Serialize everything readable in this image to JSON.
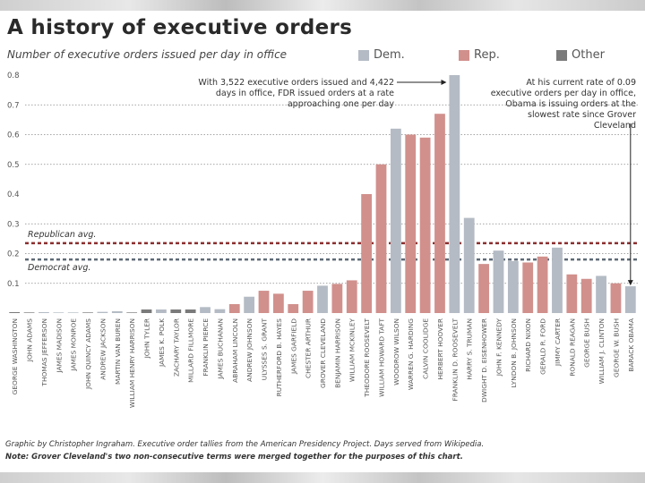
{
  "header": {
    "title": "A history of executive orders",
    "subtitle": "Number of executive orders issued per day in office"
  },
  "legend": [
    {
      "label": "Dem.",
      "color": "#b4bbc4"
    },
    {
      "label": "Rep.",
      "color": "#d1908c"
    },
    {
      "label": "Other",
      "color": "#7a7a7a"
    }
  ],
  "annotations": {
    "fdr": "With 3,522 executive orders issued and 4,422 days in office, FDR issued orders at a rate approaching one per day",
    "obama": "At his current rate of 0.09 executive orders per day in office, Obama is issuing orders at the slowest rate since Grover Cleveland"
  },
  "footer": {
    "credit": "Graphic by Christopher Ingraham. Executive order tallies from the American Presidency Project. Days served from Wikipedia.",
    "note": "Note: Grover Cleveland's two non-consecutive terms were merged together for the purposes of this chart."
  },
  "chart_data": {
    "type": "bar",
    "title": "A history of executive orders",
    "ylabel": "Number of executive orders issued per day in office",
    "xlabel": "",
    "ylim": [
      0,
      0.8
    ],
    "yticks": [
      "0.1",
      "0.2",
      "0.3",
      "0.4",
      "0.5",
      "0.6",
      "0.7",
      "0.8"
    ],
    "grid": true,
    "legend_position": "top-right",
    "party_colors": {
      "Dem": "#b4bbc4",
      "Rep": "#d1908c",
      "Other": "#7a7a7a"
    },
    "reference_lines": [
      {
        "label": "Republican avg.",
        "value": 0.235,
        "color": "#8b2e2e"
      },
      {
        "label": "Democrat avg.",
        "value": 0.18,
        "color": "#5f6a76"
      }
    ],
    "categories": [
      "GEORGE WASHINGTON",
      "JOHN ADAMS",
      "THOMAS JEFFERSON",
      "JAMES MADISON",
      "JAMES MONROE",
      "JOHN QUINCY ADAMS",
      "ANDREW JACKSON",
      "MARTIN VAN BUREN",
      "WILLIAM HENRY HARRISON",
      "JOHN TYLER",
      "JAMES K. POLK",
      "ZACHARY TAYLOR",
      "MILLARD FILLMORE",
      "FRANKLIN PIERCE",
      "JAMES BUCHANAN",
      "ABRAHAM LINCOLN",
      "ANDREW JOHNSON",
      "ULYSSES S. GRANT",
      "RUTHERFORD B. HAYES",
      "JAMES GARFIELD",
      "CHESTER ARTHUR",
      "GROVER CLEVELAND",
      "BENJAMIN HARRISON",
      "WILLIAM MCKINLEY",
      "THEODORE ROOSEVELT",
      "WILLIAM HOWARD TAFT",
      "WOODROW WILSON",
      "WARREN G. HARDING",
      "CALVIN COOLIDGE",
      "HERBERT HOOVER",
      "FRANKLIN D. ROOSEVELT",
      "HARRY S. TRUMAN",
      "DWIGHT D. EISENHOWER",
      "JOHN F. KENNEDY",
      "LYNDON B. JOHNSON",
      "RICHARD NIXON",
      "GERALD R. FORD",
      "JIMMY CARTER",
      "RONALD REAGAN",
      "GEORGE BUSH",
      "WILLIAM J. CLINTON",
      "GEORGE W. BUSH",
      "BARACK OBAMA"
    ],
    "parties": [
      "Other",
      "Other",
      "Dem",
      "Dem",
      "Dem",
      "Other",
      "Dem",
      "Dem",
      "Other",
      "Other",
      "Dem",
      "Other",
      "Other",
      "Dem",
      "Dem",
      "Rep",
      "Dem",
      "Rep",
      "Rep",
      "Rep",
      "Rep",
      "Dem",
      "Rep",
      "Rep",
      "Rep",
      "Rep",
      "Dem",
      "Rep",
      "Rep",
      "Rep",
      "Dem",
      "Dem",
      "Rep",
      "Dem",
      "Dem",
      "Rep",
      "Rep",
      "Dem",
      "Rep",
      "Rep",
      "Dem",
      "Rep",
      "Dem"
    ],
    "values": [
      0.003,
      0.001,
      0.003,
      0.001,
      0.001,
      0.002,
      0.004,
      0.006,
      0.0,
      0.012,
      0.012,
      0.012,
      0.012,
      0.02,
      0.013,
      0.03,
      0.055,
      0.075,
      0.065,
      0.03,
      0.075,
      0.092,
      0.098,
      0.11,
      0.4,
      0.5,
      0.62,
      0.6,
      0.59,
      0.67,
      0.8,
      0.32,
      0.165,
      0.21,
      0.175,
      0.17,
      0.19,
      0.22,
      0.13,
      0.115,
      0.125,
      0.1,
      0.09
    ]
  }
}
